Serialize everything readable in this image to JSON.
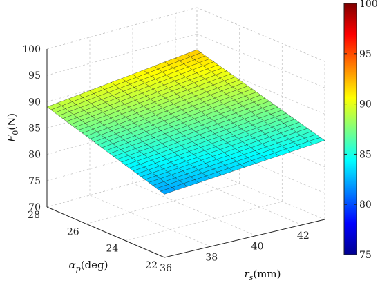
{
  "chart_data": {
    "type": "surface",
    "x": {
      "var": "r",
      "sub": "s",
      "unit": "(mm)",
      "range": [
        36,
        43
      ],
      "ticks": [
        36,
        38,
        40,
        42
      ]
    },
    "y": {
      "var": "α",
      "sub": "p",
      "unit": "(deg)",
      "range": [
        22,
        28
      ],
      "ticks": [
        22,
        24,
        26,
        28
      ]
    },
    "z": {
      "var": "F",
      "sub": "0",
      "unit": "(N)",
      "range": [
        70,
        100
      ],
      "ticks": [
        70,
        75,
        80,
        85,
        90,
        95,
        100
      ]
    },
    "surface": {
      "x_range": [
        36,
        43
      ],
      "y_range": [
        22,
        28
      ],
      "corners": {
        "x36_y28": 89,
        "x43_y28": 92,
        "x43_y22": 85,
        "x36_y22": 82
      }
    },
    "colorbar": {
      "range": [
        75,
        100
      ],
      "ticks": [
        75,
        80,
        85,
        90,
        95,
        100
      ],
      "colormap": "jet"
    },
    "grid": true
  }
}
